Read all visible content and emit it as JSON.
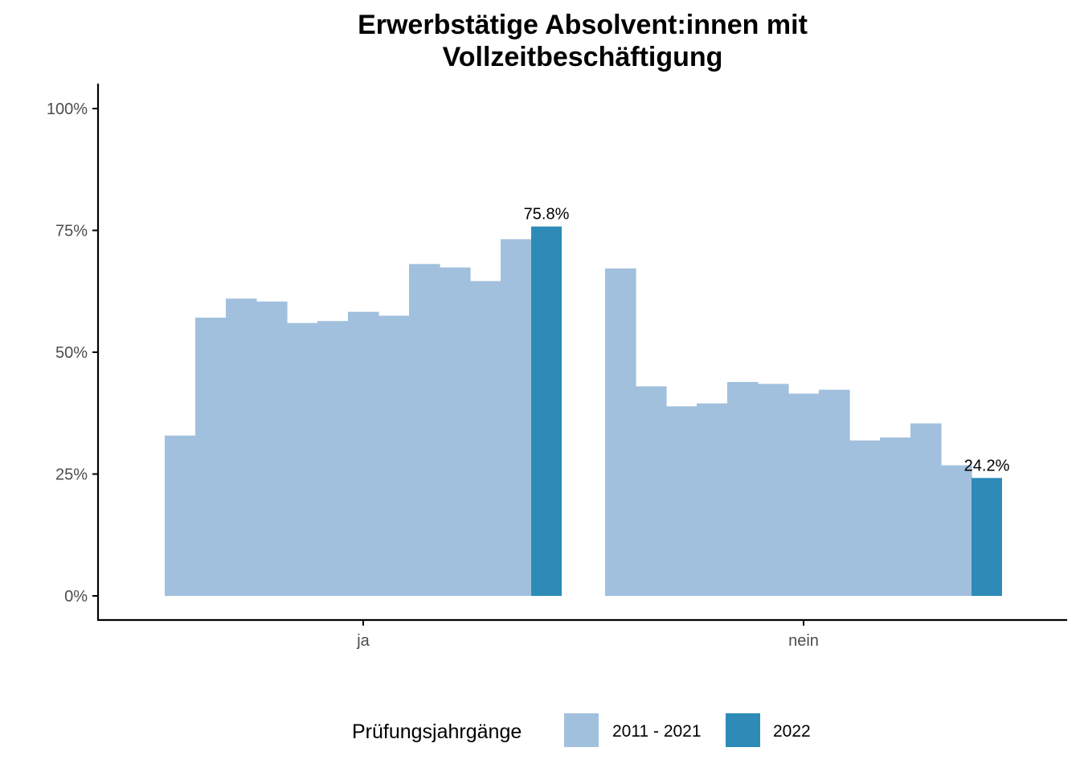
{
  "chart_data": {
    "type": "bar",
    "title_lines": [
      "Erwerbstätige Absolvent:innen mit",
      "Vollzeitbeschäftigung"
    ],
    "xlabel": "",
    "ylabel": "",
    "categories": [
      "ja",
      "nein"
    ],
    "ylim": [
      0,
      1.05
    ],
    "y_ticks": [
      {
        "value": 0,
        "label": "0%"
      },
      {
        "value": 0.25,
        "label": "25%"
      },
      {
        "value": 0.5,
        "label": "50%"
      },
      {
        "value": 0.75,
        "label": "75%"
      },
      {
        "value": 1.0,
        "label": "100%"
      }
    ],
    "grid": false,
    "legend": {
      "title": "Prüfungsjahrgänge",
      "position": "bottom",
      "entries": [
        {
          "label": "2011 - 2021",
          "color": "#a1c0dd"
        },
        {
          "label": "2022",
          "color": "#2e8bb8"
        }
      ]
    },
    "groups": [
      {
        "category": "ja",
        "past_values": [
          0.329,
          0.571,
          0.61,
          0.604,
          0.56,
          0.564,
          0.583,
          0.575,
          0.681,
          0.674,
          0.646,
          0.732
        ],
        "current_value": 0.758,
        "current_label": "75.8%"
      },
      {
        "category": "nein",
        "past_values": [
          0.672,
          0.43,
          0.389,
          0.395,
          0.439,
          0.435,
          0.415,
          0.423,
          0.319,
          0.325,
          0.354,
          0.268
        ],
        "current_value": 0.242,
        "current_label": "24.2%"
      }
    ],
    "colors": {
      "past": "#a1c0dd",
      "current": "#2e8bb8",
      "axis": "#000000"
    }
  }
}
